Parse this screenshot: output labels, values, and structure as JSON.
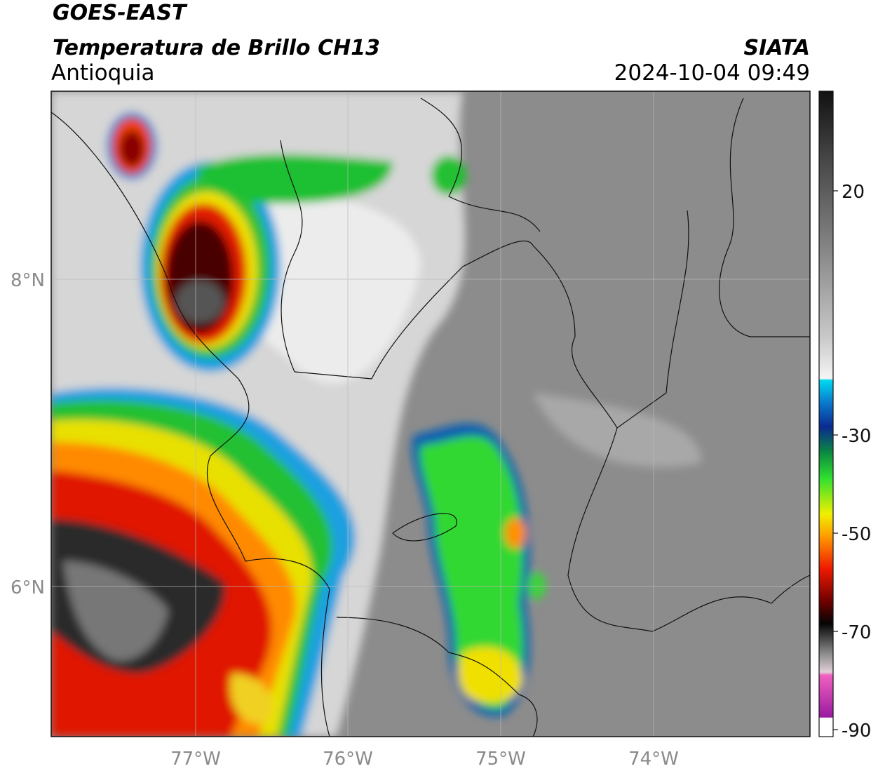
{
  "header": {
    "title": "GOES-EAST",
    "subtitle": "Temperatura de Brillo CH13",
    "region": "Antioquia",
    "source": "SIATA",
    "datetime": "2024-10-04 09:49"
  },
  "map": {
    "x_labels": [
      "77°W",
      "76°W",
      "75°W",
      "74°W"
    ],
    "y_labels": [
      "8°N",
      "6°N"
    ]
  },
  "colorbar": {
    "labels": [
      "20",
      "-30",
      "-50",
      "-70",
      "-90"
    ]
  }
}
